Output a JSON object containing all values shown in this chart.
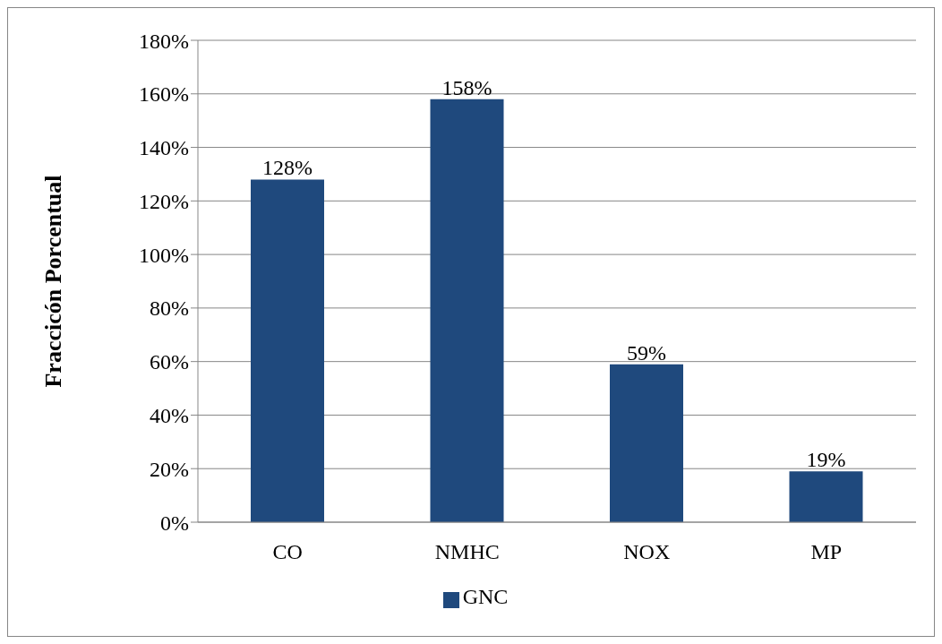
{
  "chart_data": {
    "type": "bar",
    "ylabel": "Fraccicón Porcentual",
    "categories": [
      "CO",
      "NMHC",
      "NOX",
      "MP"
    ],
    "series": [
      {
        "name": "GNC",
        "color": "#1f497d",
        "values": [
          128,
          158,
          59,
          19
        ],
        "value_labels": [
          "128%",
          "158%",
          "59%",
          "19%"
        ]
      }
    ],
    "ylim": [
      0,
      180
    ],
    "yticks": [
      {
        "value": 0,
        "label": "0%"
      },
      {
        "value": 20,
        "label": "20%"
      },
      {
        "value": 40,
        "label": "40%"
      },
      {
        "value": 60,
        "label": "60%"
      },
      {
        "value": 80,
        "label": "80%"
      },
      {
        "value": 100,
        "label": "100%"
      },
      {
        "value": 120,
        "label": "120%"
      },
      {
        "value": 140,
        "label": "140%"
      },
      {
        "value": 160,
        "label": "160%"
      },
      {
        "value": 180,
        "label": "180%"
      }
    ],
    "grid": "y",
    "legend": "bottom"
  }
}
